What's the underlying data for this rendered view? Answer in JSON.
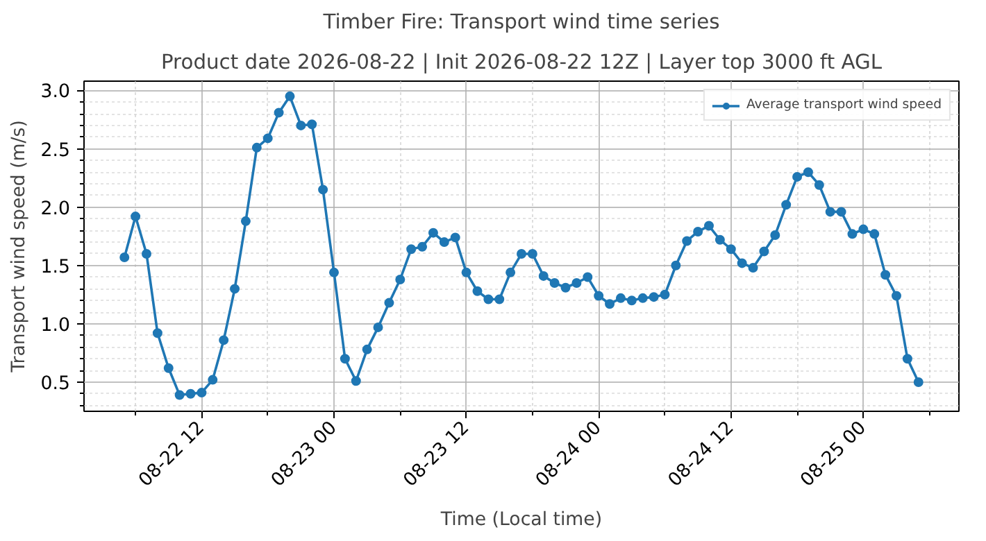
{
  "chart_data": {
    "type": "line",
    "title": "Timber Fire: Transport wind time series",
    "subtitle": "Product date 2026-08-22 | Init 2026-08-22 12Z | Layer top 3000 ft AGL",
    "xlabel": "Time (Local time)",
    "ylabel": "Transport wind speed (m/s)",
    "x": [
      "2026-08-22T05:00",
      "2026-08-22T06:00",
      "2026-08-22T07:00",
      "2026-08-22T08:00",
      "2026-08-22T09:00",
      "2026-08-22T10:00",
      "2026-08-22T11:00",
      "2026-08-22T12:00",
      "2026-08-22T13:00",
      "2026-08-22T14:00",
      "2026-08-22T15:00",
      "2026-08-22T16:00",
      "2026-08-22T17:00",
      "2026-08-22T18:00",
      "2026-08-22T19:00",
      "2026-08-22T20:00",
      "2026-08-22T21:00",
      "2026-08-22T22:00",
      "2026-08-22T23:00",
      "2026-08-23T00:00",
      "2026-08-23T01:00",
      "2026-08-23T02:00",
      "2026-08-23T03:00",
      "2026-08-23T04:00",
      "2026-08-23T05:00",
      "2026-08-23T06:00",
      "2026-08-23T07:00",
      "2026-08-23T08:00",
      "2026-08-23T09:00",
      "2026-08-23T10:00",
      "2026-08-23T11:00",
      "2026-08-23T12:00",
      "2026-08-23T13:00",
      "2026-08-23T14:00",
      "2026-08-23T15:00",
      "2026-08-23T16:00",
      "2026-08-23T17:00",
      "2026-08-23T18:00",
      "2026-08-23T19:00",
      "2026-08-23T20:00",
      "2026-08-23T21:00",
      "2026-08-23T22:00",
      "2026-08-23T23:00",
      "2026-08-24T00:00",
      "2026-08-24T01:00",
      "2026-08-24T02:00",
      "2026-08-24T03:00",
      "2026-08-24T04:00",
      "2026-08-24T05:00",
      "2026-08-24T06:00",
      "2026-08-24T07:00",
      "2026-08-24T08:00",
      "2026-08-24T09:00",
      "2026-08-24T10:00",
      "2026-08-24T11:00",
      "2026-08-24T12:00",
      "2026-08-24T13:00",
      "2026-08-24T14:00",
      "2026-08-24T15:00",
      "2026-08-24T16:00",
      "2026-08-24T17:00",
      "2026-08-24T18:00",
      "2026-08-24T19:00",
      "2026-08-24T20:00",
      "2026-08-24T21:00",
      "2026-08-24T22:00",
      "2026-08-24T23:00",
      "2026-08-25T00:00",
      "2026-08-25T01:00",
      "2026-08-25T02:00",
      "2026-08-25T03:00",
      "2026-08-25T04:00",
      "2026-08-25T05:00"
    ],
    "series": [
      {
        "name": "Average transport wind speed",
        "color": "#1f77b4",
        "values": [
          1.57,
          1.92,
          1.6,
          0.92,
          0.62,
          0.39,
          0.4,
          0.41,
          0.52,
          0.86,
          1.3,
          1.88,
          2.51,
          2.59,
          2.81,
          2.95,
          2.7,
          2.71,
          2.15,
          1.44,
          0.7,
          0.51,
          0.78,
          0.97,
          1.18,
          1.38,
          1.64,
          1.66,
          1.78,
          1.7,
          1.74,
          1.44,
          1.28,
          1.21,
          1.21,
          1.44,
          1.6,
          1.6,
          1.41,
          1.35,
          1.31,
          1.35,
          1.4,
          1.24,
          1.17,
          1.22,
          1.2,
          1.22,
          1.23,
          1.25,
          1.5,
          1.71,
          1.79,
          1.84,
          1.72,
          1.64,
          1.52,
          1.48,
          1.62,
          1.76,
          2.02,
          2.26,
          2.3,
          2.19,
          1.96,
          1.96,
          1.77,
          1.81,
          1.77,
          1.42,
          1.24,
          0.7,
          0.5
        ]
      }
    ],
    "xlim": [
      "2026-08-22T01:20",
      "2026-08-25T08:40"
    ],
    "xticks": [
      {
        "value": "2026-08-22T12:00",
        "label": "08-22 12"
      },
      {
        "value": "2026-08-23T00:00",
        "label": "08-23 00"
      },
      {
        "value": "2026-08-23T12:00",
        "label": "08-23 12"
      },
      {
        "value": "2026-08-24T00:00",
        "label": "08-24 00"
      },
      {
        "value": "2026-08-24T12:00",
        "label": "08-24 12"
      },
      {
        "value": "2026-08-25T00:00",
        "label": "08-25 00"
      }
    ],
    "ylim": [
      0.25,
      3.08
    ],
    "yticks": [
      0.5,
      {
        "value": 1,
        "label": "1.0"
      },
      1.5,
      {
        "value": 2,
        "label": "2.0"
      },
      2.5,
      {
        "value": 3,
        "label": "3.0"
      }
    ],
    "grid": true,
    "legend": "top right",
    "marker": "circle",
    "line_style": "solid"
  }
}
